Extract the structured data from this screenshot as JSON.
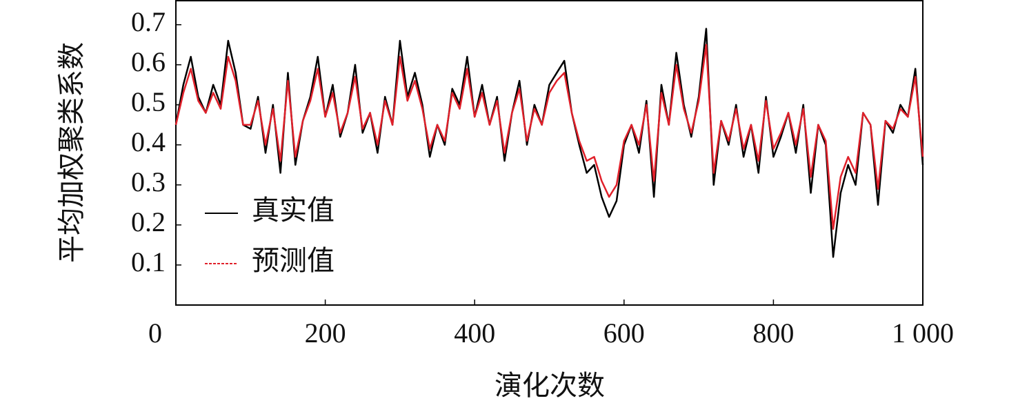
{
  "chart_data": {
    "type": "line",
    "xlabel": "演化次数",
    "ylabel": "平均加权聚类系数",
    "x": [
      0,
      10,
      20,
      30,
      40,
      50,
      60,
      70,
      80,
      90,
      100,
      110,
      120,
      130,
      140,
      150,
      160,
      170,
      180,
      190,
      200,
      210,
      220,
      230,
      240,
      250,
      260,
      270,
      280,
      290,
      300,
      310,
      320,
      330,
      340,
      350,
      360,
      370,
      380,
      390,
      400,
      410,
      420,
      430,
      440,
      450,
      460,
      470,
      480,
      490,
      500,
      510,
      520,
      530,
      540,
      550,
      560,
      570,
      580,
      590,
      600,
      610,
      620,
      630,
      640,
      650,
      660,
      670,
      680,
      690,
      700,
      710,
      720,
      730,
      740,
      750,
      760,
      770,
      780,
      790,
      800,
      810,
      820,
      830,
      840,
      850,
      860,
      870,
      880,
      890,
      900,
      910,
      920,
      930,
      940,
      950,
      960,
      970,
      980,
      990,
      1000
    ],
    "series": [
      {
        "name": "真实值",
        "color": "#000000",
        "values": [
          0.45,
          0.55,
          0.62,
          0.52,
          0.48,
          0.55,
          0.5,
          0.66,
          0.58,
          0.45,
          0.44,
          0.52,
          0.38,
          0.5,
          0.33,
          0.58,
          0.35,
          0.46,
          0.52,
          0.62,
          0.47,
          0.55,
          0.42,
          0.48,
          0.6,
          0.43,
          0.48,
          0.38,
          0.52,
          0.45,
          0.66,
          0.52,
          0.58,
          0.5,
          0.37,
          0.45,
          0.4,
          0.54,
          0.5,
          0.62,
          0.47,
          0.55,
          0.45,
          0.52,
          0.36,
          0.48,
          0.56,
          0.4,
          0.5,
          0.45,
          0.55,
          0.58,
          0.61,
          0.48,
          0.4,
          0.33,
          0.35,
          0.27,
          0.22,
          0.26,
          0.4,
          0.45,
          0.38,
          0.51,
          0.27,
          0.55,
          0.45,
          0.63,
          0.5,
          0.42,
          0.52,
          0.69,
          0.3,
          0.46,
          0.4,
          0.5,
          0.37,
          0.45,
          0.33,
          0.52,
          0.37,
          0.42,
          0.48,
          0.38,
          0.5,
          0.28,
          0.45,
          0.4,
          0.12,
          0.28,
          0.35,
          0.3,
          0.48,
          0.45,
          0.25,
          0.46,
          0.43,
          0.5,
          0.47,
          0.59,
          0.35
        ]
      },
      {
        "name": "预测值",
        "color": "#e0202a",
        "values": [
          0.45,
          0.53,
          0.59,
          0.51,
          0.48,
          0.53,
          0.49,
          0.62,
          0.56,
          0.45,
          0.45,
          0.51,
          0.4,
          0.49,
          0.36,
          0.56,
          0.37,
          0.46,
          0.51,
          0.59,
          0.47,
          0.53,
          0.43,
          0.48,
          0.57,
          0.44,
          0.48,
          0.4,
          0.51,
          0.45,
          0.62,
          0.51,
          0.56,
          0.49,
          0.39,
          0.45,
          0.41,
          0.53,
          0.49,
          0.59,
          0.47,
          0.53,
          0.45,
          0.51,
          0.38,
          0.48,
          0.54,
          0.41,
          0.49,
          0.45,
          0.53,
          0.56,
          0.58,
          0.48,
          0.41,
          0.36,
          0.37,
          0.31,
          0.27,
          0.3,
          0.41,
          0.45,
          0.4,
          0.5,
          0.31,
          0.53,
          0.45,
          0.6,
          0.49,
          0.43,
          0.51,
          0.65,
          0.33,
          0.46,
          0.41,
          0.49,
          0.39,
          0.45,
          0.36,
          0.51,
          0.39,
          0.43,
          0.48,
          0.4,
          0.49,
          0.32,
          0.45,
          0.41,
          0.19,
          0.32,
          0.37,
          0.33,
          0.48,
          0.45,
          0.29,
          0.46,
          0.44,
          0.49,
          0.47,
          0.57,
          0.37
        ]
      }
    ],
    "xlim": [
      0,
      1000
    ],
    "xticks": [
      0,
      200,
      400,
      600,
      800,
      {
        "value": 1000,
        "label": "1 000"
      }
    ],
    "ylim": [
      0,
      0.76
    ],
    "yticks": [
      0.1,
      0.2,
      0.3,
      0.4,
      0.5,
      0.6,
      0.7
    ],
    "legend": "lower left"
  }
}
